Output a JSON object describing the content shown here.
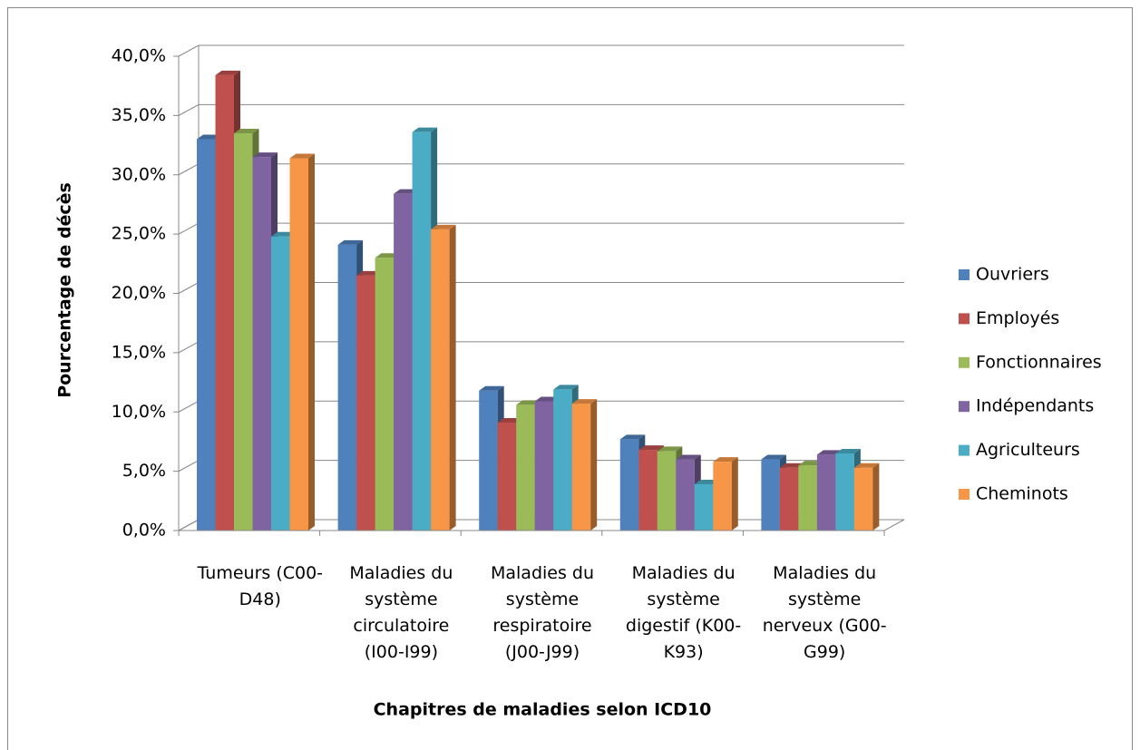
{
  "chart_data": {
    "type": "bar3d",
    "y_label": "Pourcentage de décès",
    "x_label": "Chapitres de maladies selon ICD10",
    "categories": [
      "Tumeurs (C00-D48)",
      "Maladies du système circulatoire (I00-I99)",
      "Maladies du système respiratoire (J00-J99)",
      "Maladies du système digestif (K00-K93)",
      "Maladies du système nerveux (G00-G99)"
    ],
    "series": [
      {
        "name": "Ouvriers",
        "color": "#4f81bd",
        "values": [
          33.0,
          24.1,
          11.8,
          7.7,
          6.0
        ]
      },
      {
        "name": "Employés",
        "color": "#c0504d",
        "values": [
          38.4,
          21.5,
          9.1,
          6.8,
          5.3
        ]
      },
      {
        "name": "Fonctionnaires",
        "color": "#9bbb59",
        "values": [
          33.5,
          23.0,
          10.6,
          6.7,
          5.5
        ]
      },
      {
        "name": "Indépendants",
        "color": "#8064a2",
        "values": [
          31.5,
          28.4,
          10.9,
          6.0,
          6.4
        ]
      },
      {
        "name": "Agriculteurs",
        "color": "#4bacc6",
        "values": [
          24.8,
          33.6,
          11.9,
          3.9,
          6.5
        ]
      },
      {
        "name": "Cheminots",
        "color": "#f79646",
        "values": [
          31.4,
          25.4,
          10.7,
          5.8,
          5.3
        ]
      }
    ],
    "ylim": [
      0,
      40
    ],
    "yticks": [
      {
        "value": 0,
        "label": "0,0%"
      },
      {
        "value": 5,
        "label": "5,0%"
      },
      {
        "value": 10,
        "label": "10,0%"
      },
      {
        "value": 15,
        "label": "15,0%"
      },
      {
        "value": 20,
        "label": "20,0%"
      },
      {
        "value": 25,
        "label": "25,0%"
      },
      {
        "value": 30,
        "label": "30,0%"
      },
      {
        "value": 35,
        "label": "35,0%"
      },
      {
        "value": 40,
        "label": "40,0%"
      }
    ],
    "grid": true,
    "legend": "right"
  }
}
